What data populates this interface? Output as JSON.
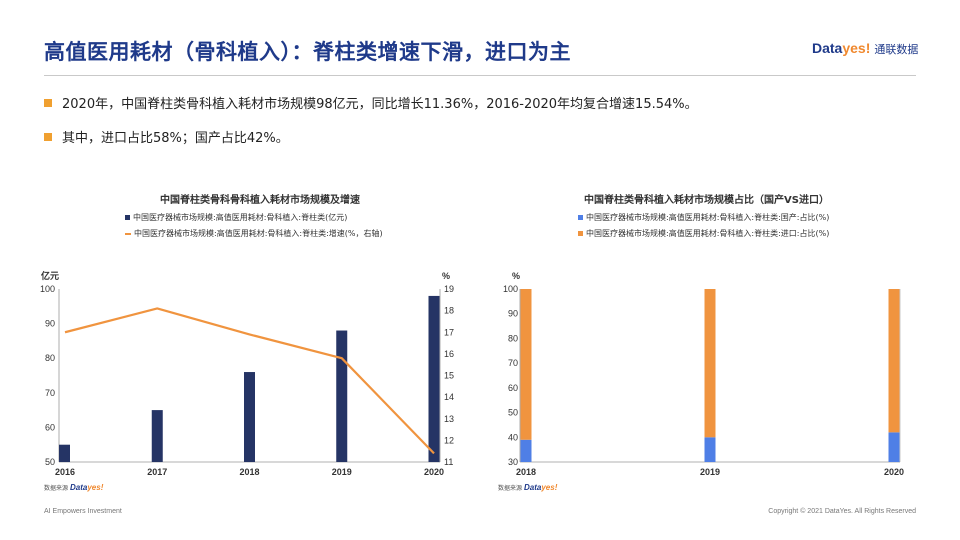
{
  "header": {
    "title": "高值医用耗材（骨科植入）：脊柱类增速下滑，进口为主",
    "logo_brand_main": "Data",
    "logo_brand_accent": "yes!",
    "logo_cn": "通联数据"
  },
  "bullets": [
    "2020年，中国脊柱类骨科植入耗材市场规模98亿元，同比增长11.36%，2016-2020年均复合增速15.54%。",
    "其中，进口占比58%；国产占比42%。"
  ],
  "footer": {
    "left": "AI Empowers Investment",
    "right": "Copyright © 2021 DataYes. All Rights Reserved"
  },
  "source": {
    "label": "数据来源",
    "brand_main": "Data",
    "brand_accent": "yes!"
  },
  "colors": {
    "navy": "#253465",
    "orange": "#f0943f",
    "blue": "#4f7fe6",
    "title": "#1f3a8a"
  },
  "chart_data": [
    {
      "type": "bar+line",
      "title": "中国脊柱类骨科骨科植入耗材市场规模及增速",
      "legend": [
        "中国医疗器械市场规模:高值医用耗材:骨科植入:脊柱类(亿元)",
        "中国医疗器械市场规模:高值医用耗材:骨科植入:脊柱类:增速(%，右轴)"
      ],
      "categories": [
        "2016",
        "2017",
        "2018",
        "2019",
        "2020"
      ],
      "bar_values": [
        55,
        65,
        76,
        88,
        98
      ],
      "line_values": [
        17,
        18.1,
        16.9,
        15.8,
        11.4
      ],
      "left_axis": {
        "label": "亿元",
        "min": 50,
        "max": 100,
        "ticks": [
          "50",
          "60",
          "70",
          "80",
          "90",
          "100"
        ]
      },
      "right_axis": {
        "label": "%",
        "min": 11,
        "max": 19,
        "ticks": [
          "11",
          "12",
          "13",
          "14",
          "15",
          "16",
          "17",
          "18",
          "19"
        ]
      }
    },
    {
      "type": "stacked-bar",
      "title": "中国脊柱类骨科植入耗材市场规模占比（国产VS进口）",
      "legend": [
        "中国医疗器械市场规模:高值医用耗材:骨科植入:脊柱类:国产:占比(%)",
        "中国医疗器械市场规模:高值医用耗材:骨科植入:脊柱类:进口:占比(%)"
      ],
      "categories": [
        "2018",
        "2019",
        "2020"
      ],
      "domestic": [
        39,
        40,
        42
      ],
      "import": [
        61,
        60,
        58
      ],
      "axis": {
        "label": "%",
        "min": 30,
        "max": 100,
        "ticks": [
          "30",
          "40",
          "50",
          "60",
          "70",
          "80",
          "90",
          "100"
        ]
      }
    }
  ]
}
